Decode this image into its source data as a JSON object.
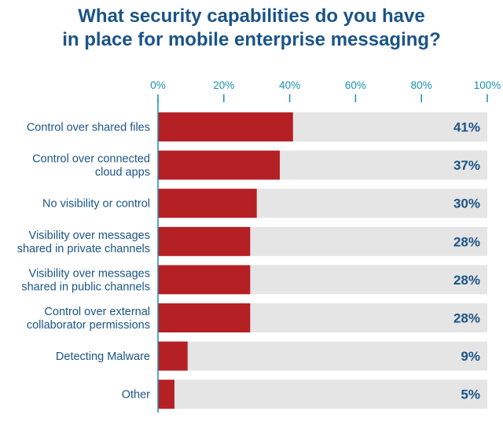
{
  "title_lines": [
    "What security capabilities do you have",
    "in place for mobile enterprise messaging?"
  ],
  "chart_data": {
    "type": "bar",
    "orientation": "horizontal",
    "categories": [
      [
        "Control over shared files"
      ],
      [
        "Control over connected",
        "cloud apps"
      ],
      [
        "No visibility or control"
      ],
      [
        "Visibility over messages",
        "shared in private channels"
      ],
      [
        "Visibility over messages",
        "shared in public channels"
      ],
      [
        "Control over external",
        "collaborator permissions"
      ],
      [
        "Detecting Malware"
      ],
      [
        "Other"
      ]
    ],
    "values": [
      41,
      37,
      30,
      28,
      28,
      28,
      9,
      5
    ],
    "value_labels": [
      "41%",
      "37%",
      "30%",
      "28%",
      "28%",
      "28%",
      "9%",
      "5%"
    ],
    "xticks": [
      "0%",
      "20%",
      "40%",
      "60%",
      "80%",
      "100%"
    ],
    "xlim": [
      0,
      100
    ],
    "colors": {
      "bar": "#b52025",
      "track": "#e5e5e5",
      "axis": "#1b8fb4",
      "text": "#1b5486"
    }
  }
}
